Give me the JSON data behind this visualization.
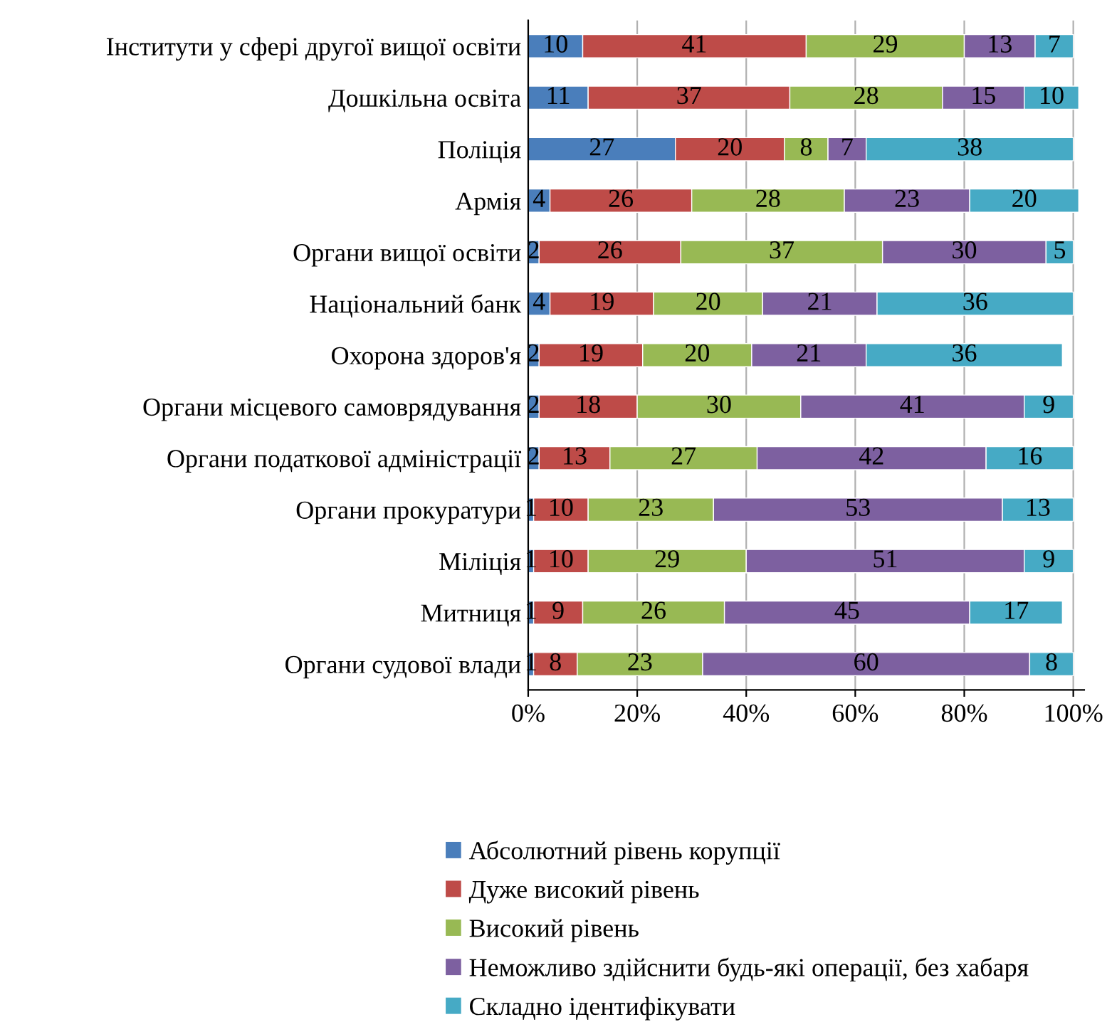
{
  "chart_data": {
    "type": "bar",
    "orientation": "horizontal",
    "stacked": true,
    "data_labels": true,
    "grid": "x",
    "legend": "bottom",
    "categories": [
      "Інститути у сфері другої вищої освіти",
      "Дошкільна освіта",
      "Поліція",
      "Армія",
      "Органи вищої освіти",
      "Національний банк",
      "Охорона здоров'я",
      "Органи місцевого самоврядування",
      "Органи податкової адміністрації",
      "Органи прокуратури",
      "Міліція",
      "Митниця",
      "Органи судової влади"
    ],
    "series": [
      {
        "name": "Абсолютний рівень корупції",
        "color": "#4a7ebb",
        "values": [
          10,
          11,
          27,
          4,
          2,
          4,
          2,
          2,
          2,
          1,
          1,
          1,
          1
        ]
      },
      {
        "name": "Дуже високий рівень",
        "color": "#be4b48",
        "values": [
          41,
          37,
          20,
          26,
          26,
          19,
          19,
          18,
          13,
          10,
          10,
          9,
          8
        ]
      },
      {
        "name": "Високий рівень",
        "color": "#98b954",
        "values": [
          29,
          28,
          8,
          28,
          37,
          20,
          20,
          30,
          27,
          23,
          29,
          26,
          23
        ]
      },
      {
        "name": "Неможливо здійснити будь-які операції, без хабаря",
        "color": "#7d60a0",
        "values": [
          13,
          15,
          7,
          23,
          30,
          21,
          21,
          41,
          42,
          53,
          51,
          45,
          60
        ]
      },
      {
        "name": "Складно ідентифікувати",
        "color": "#46aac5",
        "values": [
          7,
          10,
          38,
          20,
          5,
          36,
          36,
          9,
          16,
          13,
          9,
          17,
          8
        ]
      }
    ],
    "xlim": [
      0,
      102
    ],
    "xticks": [
      {
        "value": 0,
        "label": "0%"
      },
      {
        "value": 20,
        "label": "20%"
      },
      {
        "value": 40,
        "label": "40%"
      },
      {
        "value": 60,
        "label": "60%"
      },
      {
        "value": 80,
        "label": "80%"
      },
      {
        "value": 100,
        "label": "100%"
      }
    ]
  }
}
